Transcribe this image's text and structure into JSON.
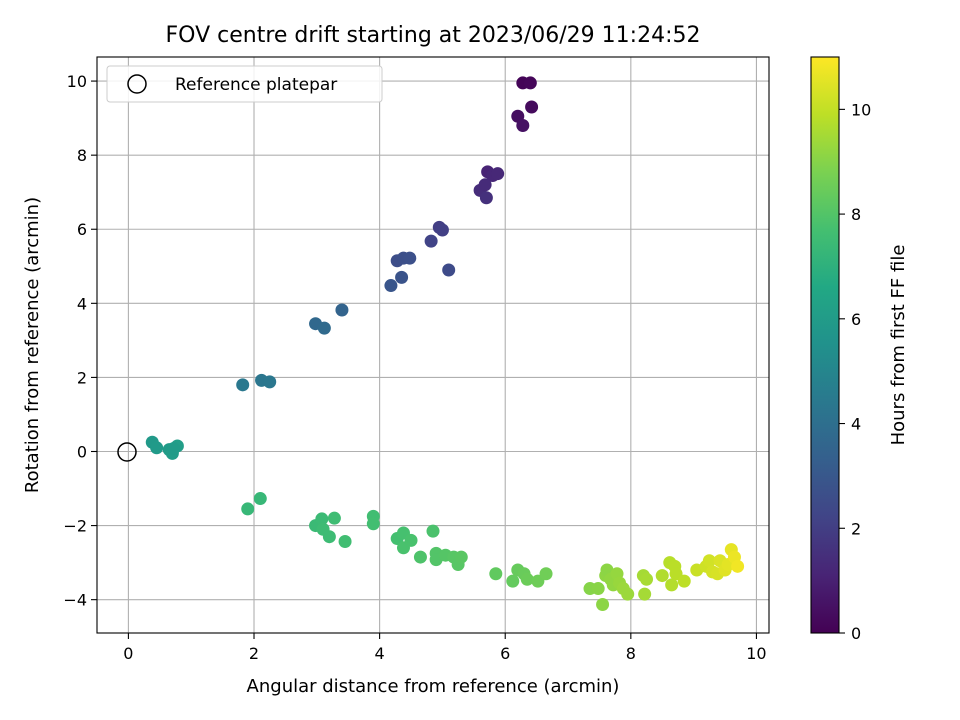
{
  "chart_data": {
    "type": "scatter",
    "title": "FOV centre drift starting at 2023/06/29 11:24:52",
    "xlabel": "Angular distance from reference (arcmin)",
    "ylabel": "Rotation from reference (arcmin)",
    "xlim": [
      -0.5,
      10.2
    ],
    "ylim": [
      -4.9,
      10.65
    ],
    "xticks": [
      0,
      2,
      4,
      6,
      8,
      10
    ],
    "yticks": [
      -4,
      -2,
      0,
      2,
      4,
      6,
      8,
      10
    ],
    "grid": true,
    "legend": {
      "position": "top-left",
      "entries": [
        {
          "label": "Reference platepar",
          "marker": "open-circle"
        }
      ]
    },
    "reference_point": {
      "x": 0,
      "y": 0
    },
    "colorbar": {
      "label": "Hours from first FF file",
      "range": [
        0,
        11
      ],
      "ticks": [
        0,
        2,
        4,
        6,
        8,
        10
      ],
      "colormap": "viridis"
    },
    "series": [
      {
        "points": [
          {
            "x": 6.28,
            "y": 9.95,
            "c": 0.1
          },
          {
            "x": 6.4,
            "y": 9.95,
            "c": 0.15
          },
          {
            "x": 6.2,
            "y": 9.05,
            "c": 0.4
          },
          {
            "x": 6.28,
            "y": 8.8,
            "c": 0.5
          },
          {
            "x": 6.42,
            "y": 9.3,
            "c": 0.3
          },
          {
            "x": 5.72,
            "y": 7.55,
            "c": 1.1
          },
          {
            "x": 5.8,
            "y": 7.45,
            "c": 1.2
          },
          {
            "x": 5.88,
            "y": 7.5,
            "c": 1.25
          },
          {
            "x": 5.6,
            "y": 7.05,
            "c": 1.4
          },
          {
            "x": 5.68,
            "y": 7.2,
            "c": 1.35
          },
          {
            "x": 5.7,
            "y": 6.85,
            "c": 1.5
          },
          {
            "x": 4.95,
            "y": 6.05,
            "c": 2.0
          },
          {
            "x": 5.0,
            "y": 5.98,
            "c": 2.05
          },
          {
            "x": 4.82,
            "y": 5.68,
            "c": 2.2
          },
          {
            "x": 5.1,
            "y": 4.9,
            "c": 2.5
          },
          {
            "x": 4.28,
            "y": 5.15,
            "c": 2.6
          },
          {
            "x": 4.38,
            "y": 5.22,
            "c": 2.65
          },
          {
            "x": 4.48,
            "y": 5.22,
            "c": 2.7
          },
          {
            "x": 4.35,
            "y": 4.7,
            "c": 2.8
          },
          {
            "x": 4.18,
            "y": 4.48,
            "c": 2.9
          },
          {
            "x": 3.4,
            "y": 3.82,
            "c": 3.5
          },
          {
            "x": 2.98,
            "y": 3.45,
            "c": 3.7
          },
          {
            "x": 3.12,
            "y": 3.33,
            "c": 3.8
          },
          {
            "x": 1.82,
            "y": 1.8,
            "c": 4.4
          },
          {
            "x": 2.12,
            "y": 1.92,
            "c": 4.3
          },
          {
            "x": 2.25,
            "y": 1.88,
            "c": 4.35
          },
          {
            "x": 0.38,
            "y": 0.25,
            "c": 5.9
          },
          {
            "x": 0.45,
            "y": 0.1,
            "c": 5.95
          },
          {
            "x": 0.65,
            "y": 0.05,
            "c": 6.0
          },
          {
            "x": 0.7,
            "y": -0.05,
            "c": 6.05
          },
          {
            "x": 0.78,
            "y": 0.15,
            "c": 6.1
          },
          {
            "x": 0.72,
            "y": 0.08,
            "c": 6.0
          },
          {
            "x": 1.9,
            "y": -1.55,
            "c": 7.3
          },
          {
            "x": 2.1,
            "y": -1.27,
            "c": 7.3
          },
          {
            "x": 2.98,
            "y": -2.0,
            "c": 7.4
          },
          {
            "x": 3.08,
            "y": -1.82,
            "c": 7.45
          },
          {
            "x": 3.1,
            "y": -2.1,
            "c": 7.5
          },
          {
            "x": 3.2,
            "y": -2.3,
            "c": 7.5
          },
          {
            "x": 3.28,
            "y": -1.8,
            "c": 7.55
          },
          {
            "x": 3.45,
            "y": -2.43,
            "c": 7.6
          },
          {
            "x": 3.9,
            "y": -1.75,
            "c": 7.6
          },
          {
            "x": 3.9,
            "y": -1.95,
            "c": 7.65
          },
          {
            "x": 4.28,
            "y": -2.35,
            "c": 7.7
          },
          {
            "x": 4.38,
            "y": -2.2,
            "c": 7.75
          },
          {
            "x": 4.38,
            "y": -2.6,
            "c": 7.8
          },
          {
            "x": 4.5,
            "y": -2.4,
            "c": 7.8
          },
          {
            "x": 4.65,
            "y": -2.85,
            "c": 7.9
          },
          {
            "x": 4.85,
            "y": -2.15,
            "c": 7.85
          },
          {
            "x": 4.9,
            "y": -2.75,
            "c": 8.0
          },
          {
            "x": 4.9,
            "y": -2.92,
            "c": 8.0
          },
          {
            "x": 5.05,
            "y": -2.8,
            "c": 8.05
          },
          {
            "x": 5.18,
            "y": -2.85,
            "c": 8.1
          },
          {
            "x": 5.25,
            "y": -3.05,
            "c": 8.1
          },
          {
            "x": 5.3,
            "y": -2.85,
            "c": 8.15
          },
          {
            "x": 5.85,
            "y": -3.3,
            "c": 8.3
          },
          {
            "x": 6.12,
            "y": -3.5,
            "c": 8.35
          },
          {
            "x": 6.2,
            "y": -3.2,
            "c": 8.4
          },
          {
            "x": 6.3,
            "y": -3.3,
            "c": 8.45
          },
          {
            "x": 6.35,
            "y": -3.45,
            "c": 8.5
          },
          {
            "x": 6.52,
            "y": -3.5,
            "c": 8.55
          },
          {
            "x": 6.65,
            "y": -3.3,
            "c": 8.6
          },
          {
            "x": 7.35,
            "y": -3.7,
            "c": 9.0
          },
          {
            "x": 7.48,
            "y": -3.7,
            "c": 9.05
          },
          {
            "x": 7.55,
            "y": -4.13,
            "c": 9.1
          },
          {
            "x": 7.6,
            "y": -3.35,
            "c": 9.15
          },
          {
            "x": 7.62,
            "y": -3.2,
            "c": 9.1
          },
          {
            "x": 7.68,
            "y": -3.45,
            "c": 9.2
          },
          {
            "x": 7.72,
            "y": -3.6,
            "c": 9.2
          },
          {
            "x": 7.78,
            "y": -3.3,
            "c": 9.25
          },
          {
            "x": 7.82,
            "y": -3.55,
            "c": 9.3
          },
          {
            "x": 7.88,
            "y": -3.7,
            "c": 9.35
          },
          {
            "x": 7.95,
            "y": -3.85,
            "c": 9.35
          },
          {
            "x": 8.2,
            "y": -3.35,
            "c": 9.5
          },
          {
            "x": 8.22,
            "y": -3.85,
            "c": 9.5
          },
          {
            "x": 8.25,
            "y": -3.45,
            "c": 9.55
          },
          {
            "x": 8.5,
            "y": -3.35,
            "c": 9.7
          },
          {
            "x": 8.62,
            "y": -3.0,
            "c": 9.8
          },
          {
            "x": 8.65,
            "y": -3.6,
            "c": 9.75
          },
          {
            "x": 8.7,
            "y": -3.1,
            "c": 9.85
          },
          {
            "x": 8.72,
            "y": -3.3,
            "c": 9.85
          },
          {
            "x": 8.85,
            "y": -3.5,
            "c": 9.9
          },
          {
            "x": 9.05,
            "y": -3.2,
            "c": 10.1
          },
          {
            "x": 9.2,
            "y": -3.1,
            "c": 10.2
          },
          {
            "x": 9.25,
            "y": -2.95,
            "c": 10.25
          },
          {
            "x": 9.3,
            "y": -3.25,
            "c": 10.3
          },
          {
            "x": 9.38,
            "y": -3.3,
            "c": 10.35
          },
          {
            "x": 9.42,
            "y": -2.95,
            "c": 10.4
          },
          {
            "x": 9.5,
            "y": -3.2,
            "c": 10.5
          },
          {
            "x": 9.55,
            "y": -3.05,
            "c": 10.55
          },
          {
            "x": 9.6,
            "y": -2.65,
            "c": 10.6
          },
          {
            "x": 9.65,
            "y": -2.85,
            "c": 10.7
          },
          {
            "x": 9.7,
            "y": -3.1,
            "c": 10.8
          }
        ]
      }
    ]
  }
}
